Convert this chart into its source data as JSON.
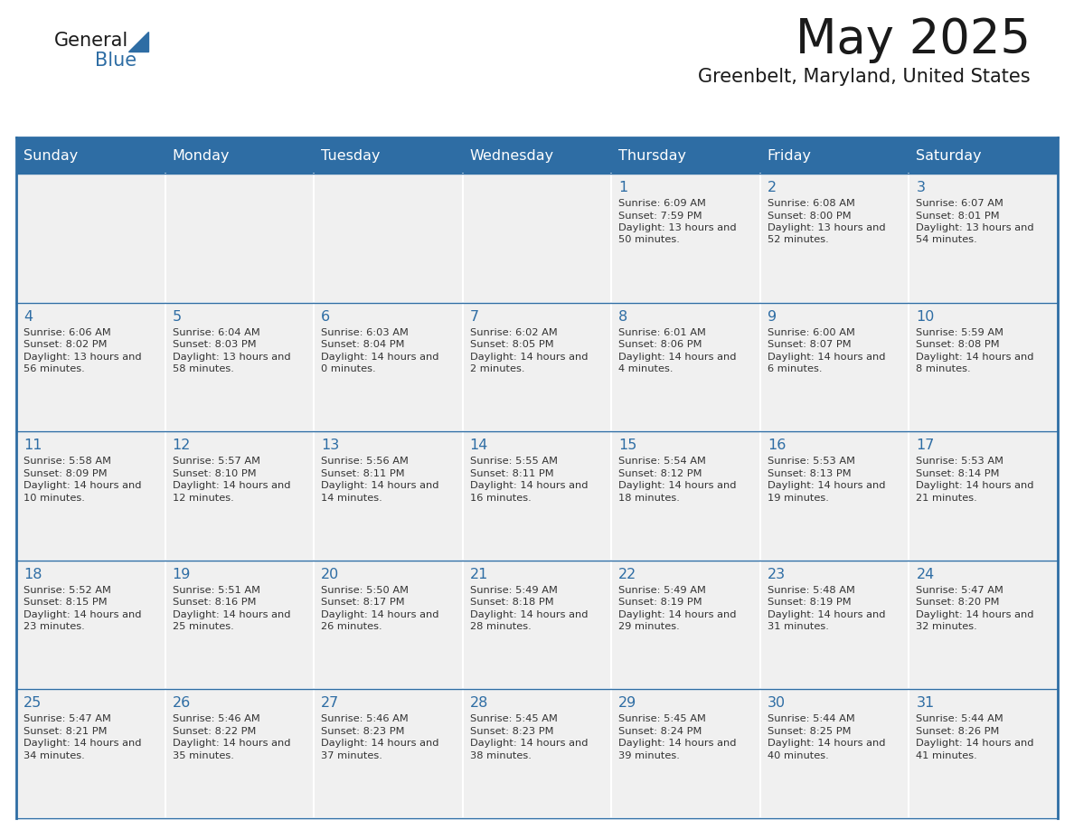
{
  "title": "May 2025",
  "subtitle": "Greenbelt, Maryland, United States",
  "header_bg_color": "#2E6DA4",
  "header_text_color": "#FFFFFF",
  "cell_bg_color": "#F0F0F0",
  "border_color": "#2E6DA4",
  "day_number_color": "#2E6DA4",
  "cell_text_color": "#333333",
  "days_of_week": [
    "Sunday",
    "Monday",
    "Tuesday",
    "Wednesday",
    "Thursday",
    "Friday",
    "Saturday"
  ],
  "weeks": [
    [
      {
        "day": "",
        "sunrise": "",
        "sunset": "",
        "daylight": ""
      },
      {
        "day": "",
        "sunrise": "",
        "sunset": "",
        "daylight": ""
      },
      {
        "day": "",
        "sunrise": "",
        "sunset": "",
        "daylight": ""
      },
      {
        "day": "",
        "sunrise": "",
        "sunset": "",
        "daylight": ""
      },
      {
        "day": "1",
        "sunrise": "6:09 AM",
        "sunset": "7:59 PM",
        "daylight": "13 hours and 50 minutes."
      },
      {
        "day": "2",
        "sunrise": "6:08 AM",
        "sunset": "8:00 PM",
        "daylight": "13 hours and 52 minutes."
      },
      {
        "day": "3",
        "sunrise": "6:07 AM",
        "sunset": "8:01 PM",
        "daylight": "13 hours and 54 minutes."
      }
    ],
    [
      {
        "day": "4",
        "sunrise": "6:06 AM",
        "sunset": "8:02 PM",
        "daylight": "13 hours and 56 minutes."
      },
      {
        "day": "5",
        "sunrise": "6:04 AM",
        "sunset": "8:03 PM",
        "daylight": "13 hours and 58 minutes."
      },
      {
        "day": "6",
        "sunrise": "6:03 AM",
        "sunset": "8:04 PM",
        "daylight": "14 hours and 0 minutes."
      },
      {
        "day": "7",
        "sunrise": "6:02 AM",
        "sunset": "8:05 PM",
        "daylight": "14 hours and 2 minutes."
      },
      {
        "day": "8",
        "sunrise": "6:01 AM",
        "sunset": "8:06 PM",
        "daylight": "14 hours and 4 minutes."
      },
      {
        "day": "9",
        "sunrise": "6:00 AM",
        "sunset": "8:07 PM",
        "daylight": "14 hours and 6 minutes."
      },
      {
        "day": "10",
        "sunrise": "5:59 AM",
        "sunset": "8:08 PM",
        "daylight": "14 hours and 8 minutes."
      }
    ],
    [
      {
        "day": "11",
        "sunrise": "5:58 AM",
        "sunset": "8:09 PM",
        "daylight": "14 hours and 10 minutes."
      },
      {
        "day": "12",
        "sunrise": "5:57 AM",
        "sunset": "8:10 PM",
        "daylight": "14 hours and 12 minutes."
      },
      {
        "day": "13",
        "sunrise": "5:56 AM",
        "sunset": "8:11 PM",
        "daylight": "14 hours and 14 minutes."
      },
      {
        "day": "14",
        "sunrise": "5:55 AM",
        "sunset": "8:11 PM",
        "daylight": "14 hours and 16 minutes."
      },
      {
        "day": "15",
        "sunrise": "5:54 AM",
        "sunset": "8:12 PM",
        "daylight": "14 hours and 18 minutes."
      },
      {
        "day": "16",
        "sunrise": "5:53 AM",
        "sunset": "8:13 PM",
        "daylight": "14 hours and 19 minutes."
      },
      {
        "day": "17",
        "sunrise": "5:53 AM",
        "sunset": "8:14 PM",
        "daylight": "14 hours and 21 minutes."
      }
    ],
    [
      {
        "day": "18",
        "sunrise": "5:52 AM",
        "sunset": "8:15 PM",
        "daylight": "14 hours and 23 minutes."
      },
      {
        "day": "19",
        "sunrise": "5:51 AM",
        "sunset": "8:16 PM",
        "daylight": "14 hours and 25 minutes."
      },
      {
        "day": "20",
        "sunrise": "5:50 AM",
        "sunset": "8:17 PM",
        "daylight": "14 hours and 26 minutes."
      },
      {
        "day": "21",
        "sunrise": "5:49 AM",
        "sunset": "8:18 PM",
        "daylight": "14 hours and 28 minutes."
      },
      {
        "day": "22",
        "sunrise": "5:49 AM",
        "sunset": "8:19 PM",
        "daylight": "14 hours and 29 minutes."
      },
      {
        "day": "23",
        "sunrise": "5:48 AM",
        "sunset": "8:19 PM",
        "daylight": "14 hours and 31 minutes."
      },
      {
        "day": "24",
        "sunrise": "5:47 AM",
        "sunset": "8:20 PM",
        "daylight": "14 hours and 32 minutes."
      }
    ],
    [
      {
        "day": "25",
        "sunrise": "5:47 AM",
        "sunset": "8:21 PM",
        "daylight": "14 hours and 34 minutes."
      },
      {
        "day": "26",
        "sunrise": "5:46 AM",
        "sunset": "8:22 PM",
        "daylight": "14 hours and 35 minutes."
      },
      {
        "day": "27",
        "sunrise": "5:46 AM",
        "sunset": "8:23 PM",
        "daylight": "14 hours and 37 minutes."
      },
      {
        "day": "28",
        "sunrise": "5:45 AM",
        "sunset": "8:23 PM",
        "daylight": "14 hours and 38 minutes."
      },
      {
        "day": "29",
        "sunrise": "5:45 AM",
        "sunset": "8:24 PM",
        "daylight": "14 hours and 39 minutes."
      },
      {
        "day": "30",
        "sunrise": "5:44 AM",
        "sunset": "8:25 PM",
        "daylight": "14 hours and 40 minutes."
      },
      {
        "day": "31",
        "sunrise": "5:44 AM",
        "sunset": "8:26 PM",
        "daylight": "14 hours and 41 minutes."
      }
    ]
  ]
}
